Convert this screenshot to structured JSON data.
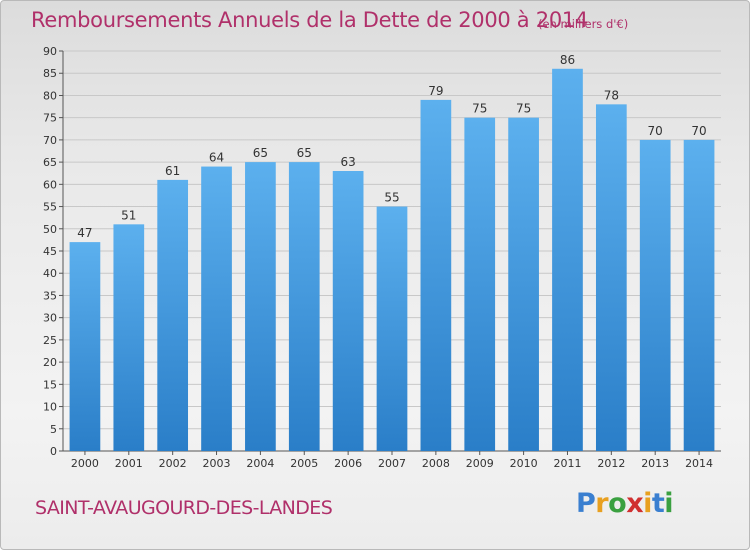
{
  "chart_data": {
    "type": "bar",
    "title": "Remboursements Annuels de la Dette de 2000 à 2014",
    "subtitle": "(en milliers d'€)",
    "categories": [
      "2000",
      "2001",
      "2002",
      "2003",
      "2004",
      "2005",
      "2006",
      "2007",
      "2008",
      "2009",
      "2010",
      "2011",
      "2012",
      "2013",
      "2014"
    ],
    "values": [
      47,
      51,
      61,
      64,
      65,
      65,
      63,
      55,
      79,
      75,
      75,
      86,
      78,
      70,
      70
    ],
    "ylim": [
      0,
      90
    ],
    "yticks": [
      0,
      5,
      10,
      15,
      20,
      25,
      30,
      35,
      40,
      45,
      50,
      55,
      60,
      65,
      70,
      75,
      80,
      85,
      90
    ],
    "grid": true,
    "bar_color": "#4a9ee0",
    "bar_color_dark": "#2a7ec8"
  },
  "commune": "SAINT-AVAUGOURD-DES-LANDES",
  "logo": {
    "letters": [
      "P",
      "r",
      "o",
      "x",
      "i",
      "t",
      "i"
    ],
    "colors": [
      "#3a7fd0",
      "#e8a020",
      "#3aa040",
      "#d03030",
      "#e8a020",
      "#3a7fd0",
      "#3aa040"
    ]
  },
  "colors": {
    "title": "#b0306a",
    "grid": "#c8c8c8"
  }
}
